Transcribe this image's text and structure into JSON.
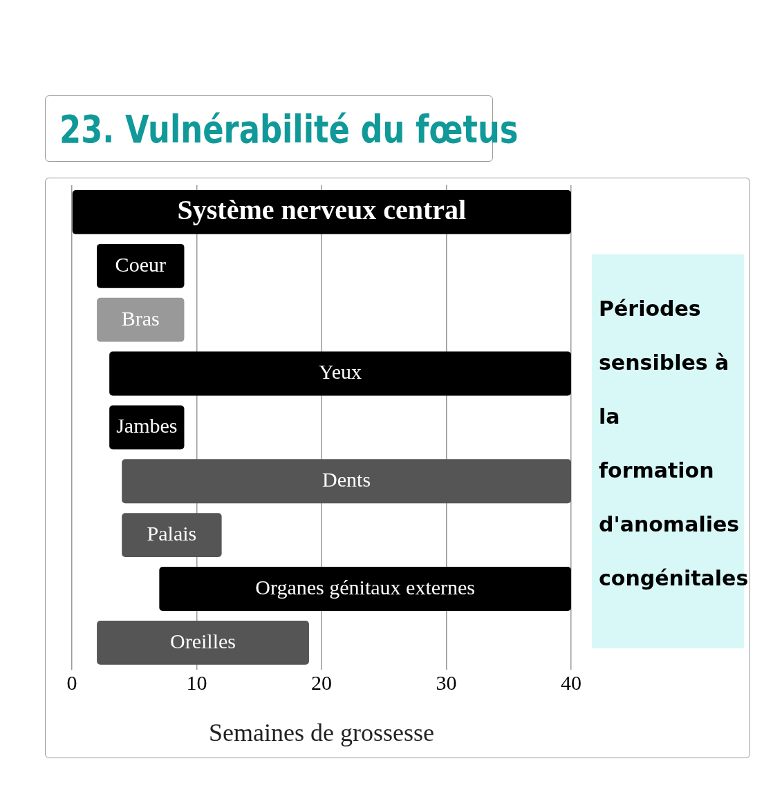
{
  "chart_data": {
    "type": "bar",
    "orientation": "horizontal",
    "title": "23. Vulnérabilité du fœtus",
    "xlabel": "Semaines de grossesse",
    "categories": [
      "Système nerveux central",
      "Coeur",
      "Bras",
      "Yeux",
      "Jambes",
      "Dents",
      "Palais",
      "Organes génitaux externes",
      "Oreilles"
    ],
    "base": [
      0,
      2,
      2,
      3,
      3,
      4,
      4,
      7,
      2
    ],
    "values": [
      40,
      7,
      7,
      37,
      6,
      36,
      8,
      33,
      17
    ],
    "colors": [
      "#000000",
      "#000000",
      "#999999",
      "#000000",
      "#000000",
      "#555555",
      "#555555",
      "#000000",
      "#555555"
    ],
    "xlim": [
      0,
      40
    ],
    "xticks": [
      0,
      10,
      20,
      30,
      40
    ],
    "grid": "x",
    "tick_labels": "x",
    "annotations": [
      "Périodes sensibles à la formation d'anomalies congénitales"
    ]
  }
}
